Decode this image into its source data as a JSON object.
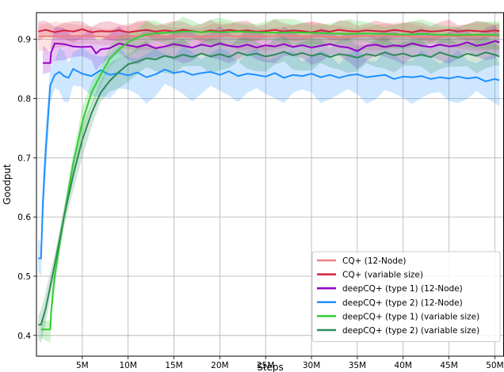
{
  "chart_data": {
    "type": "line",
    "title": "",
    "xlabel": "Steps",
    "ylabel": "Goodput",
    "xlim": [
      0,
      51
    ],
    "ylim": [
      0.365,
      0.945
    ],
    "x_unit": "M steps",
    "xticks": [
      {
        "value": 5,
        "label": "5M"
      },
      {
        "value": 10,
        "label": "10M"
      },
      {
        "value": 15,
        "label": "15M"
      },
      {
        "value": 20,
        "label": "20M"
      },
      {
        "value": 25,
        "label": "25M"
      },
      {
        "value": 30,
        "label": "30M"
      },
      {
        "value": 35,
        "label": "35M"
      },
      {
        "value": 40,
        "label": "40M"
      },
      {
        "value": 45,
        "label": "45M"
      },
      {
        "value": 50,
        "label": "50M"
      }
    ],
    "yticks": [
      {
        "value": 0.4,
        "label": "0.4"
      },
      {
        "value": 0.5,
        "label": "0.5"
      },
      {
        "value": 0.6,
        "label": "0.6"
      },
      {
        "value": 0.7,
        "label": "0.7"
      },
      {
        "value": 0.8,
        "label": "0.8"
      },
      {
        "value": 0.9,
        "label": "0.9"
      }
    ],
    "grid": true,
    "legend_position": "lower-right",
    "series": [
      {
        "name": "CQ+ (12-Node)",
        "color": "#f08080",
        "band": 0.025,
        "x": [
          0.2,
          2,
          5,
          8,
          10,
          12,
          15,
          18,
          20,
          22,
          25,
          28,
          30,
          33,
          35,
          38,
          40,
          43,
          45,
          48,
          50.5
        ],
        "y": [
          0.905,
          0.905,
          0.906,
          0.904,
          0.905,
          0.906,
          0.905,
          0.904,
          0.906,
          0.905,
          0.905,
          0.906,
          0.905,
          0.904,
          0.905,
          0.906,
          0.905,
          0.904,
          0.905,
          0.905,
          0.905
        ]
      },
      {
        "name": "CQ+ (variable size)",
        "color": "#d62040",
        "band": 0.018,
        "x": [
          0.2,
          1,
          2,
          3,
          4,
          5,
          6,
          7,
          8,
          9,
          10,
          11,
          12,
          13,
          14,
          15,
          16,
          17,
          18,
          19,
          20,
          21,
          22,
          23,
          24,
          25,
          26,
          27,
          28,
          29,
          30,
          31,
          32,
          33,
          34,
          35,
          36,
          37,
          38,
          39,
          40,
          41,
          42,
          43,
          44,
          45,
          46,
          47,
          48,
          49,
          50,
          50.5
        ],
        "y": [
          0.913,
          0.916,
          0.912,
          0.915,
          0.913,
          0.917,
          0.912,
          0.914,
          0.913,
          0.915,
          0.912,
          0.914,
          0.916,
          0.913,
          0.915,
          0.913,
          0.916,
          0.914,
          0.912,
          0.915,
          0.913,
          0.916,
          0.914,
          0.915,
          0.913,
          0.914,
          0.916,
          0.913,
          0.915,
          0.914,
          0.912,
          0.915,
          0.913,
          0.916,
          0.914,
          0.913,
          0.915,
          0.914,
          0.913,
          0.916,
          0.914,
          0.912,
          0.915,
          0.913,
          0.914,
          0.916,
          0.913,
          0.915,
          0.914,
          0.913,
          0.915,
          0.914
        ]
      },
      {
        "name": "deepCQ+ (type 1) (12-Node)",
        "color": "#9400c8",
        "band": 0.03,
        "x": [
          0.7,
          1.5,
          1.6,
          2,
          3,
          4,
          5,
          6,
          6.5,
          7,
          8,
          9,
          10,
          11,
          12,
          13,
          14,
          15,
          16,
          17,
          18,
          19,
          20,
          21,
          22,
          23,
          24,
          25,
          26,
          27,
          28,
          29,
          30,
          31,
          32,
          33,
          34,
          35,
          36,
          37,
          38,
          39,
          40,
          41,
          42,
          43,
          44,
          45,
          46,
          47,
          48,
          49,
          50,
          50.5
        ],
        "y": [
          0.86,
          0.86,
          0.878,
          0.893,
          0.892,
          0.888,
          0.887,
          0.888,
          0.876,
          0.883,
          0.885,
          0.893,
          0.89,
          0.887,
          0.891,
          0.885,
          0.888,
          0.892,
          0.889,
          0.886,
          0.891,
          0.888,
          0.893,
          0.889,
          0.887,
          0.891,
          0.886,
          0.89,
          0.888,
          0.892,
          0.887,
          0.89,
          0.886,
          0.889,
          0.892,
          0.888,
          0.886,
          0.88,
          0.889,
          0.891,
          0.887,
          0.89,
          0.888,
          0.893,
          0.889,
          0.887,
          0.891,
          0.888,
          0.89,
          0.895,
          0.889,
          0.892,
          0.897,
          0.895
        ]
      },
      {
        "name": "deepCQ+ (type 2) (12-Node)",
        "color": "#1e90ff",
        "band": 0.045,
        "x": [
          0.2,
          0.5,
          0.7,
          1,
          1.5,
          2,
          2.5,
          3,
          3.5,
          4,
          5,
          6,
          7,
          8,
          9,
          10,
          11,
          12,
          13,
          14,
          15,
          16,
          17,
          18,
          19,
          20,
          21,
          22,
          23,
          24,
          25,
          26,
          27,
          28,
          29,
          30,
          31,
          32,
          33,
          34,
          35,
          36,
          37,
          38,
          39,
          40,
          41,
          42,
          43,
          44,
          45,
          46,
          47,
          48,
          49,
          50,
          50.5
        ],
        "y": [
          0.53,
          0.53,
          0.625,
          0.71,
          0.822,
          0.84,
          0.845,
          0.838,
          0.835,
          0.85,
          0.842,
          0.838,
          0.848,
          0.84,
          0.843,
          0.839,
          0.844,
          0.836,
          0.841,
          0.849,
          0.843,
          0.846,
          0.84,
          0.843,
          0.845,
          0.84,
          0.846,
          0.838,
          0.842,
          0.84,
          0.837,
          0.843,
          0.835,
          0.84,
          0.838,
          0.842,
          0.836,
          0.84,
          0.835,
          0.839,
          0.841,
          0.836,
          0.838,
          0.84,
          0.833,
          0.837,
          0.836,
          0.838,
          0.833,
          0.836,
          0.834,
          0.837,
          0.834,
          0.836,
          0.829,
          0.833,
          0.831
        ]
      },
      {
        "name": "deepCQ+ (type 1) (variable size)",
        "color": "#32cd32",
        "band": 0.025,
        "x": [
          0.5,
          1.5,
          1.6,
          2,
          3,
          4,
          5,
          6,
          7,
          8,
          9,
          10,
          11,
          12,
          13,
          14,
          15,
          16,
          17,
          18,
          19,
          20,
          22,
          24,
          26,
          28,
          30,
          32,
          34,
          36,
          38,
          40,
          42,
          44,
          46,
          48,
          50.5
        ],
        "y": [
          0.41,
          0.41,
          0.44,
          0.5,
          0.6,
          0.69,
          0.76,
          0.81,
          0.84,
          0.867,
          0.883,
          0.895,
          0.903,
          0.908,
          0.91,
          0.911,
          0.912,
          0.913,
          0.913,
          0.912,
          0.913,
          0.912,
          0.913,
          0.912,
          0.911,
          0.912,
          0.911,
          0.91,
          0.909,
          0.91,
          0.909,
          0.908,
          0.909,
          0.908,
          0.907,
          0.908,
          0.907
        ]
      },
      {
        "name": "deepCQ+ (type 2) (variable size)",
        "color": "#2e8b57",
        "band": 0.03,
        "x": [
          0.2,
          0.5,
          1,
          2,
          3,
          4,
          5,
          6,
          7,
          8,
          9,
          10,
          11,
          12,
          13,
          14,
          15,
          16,
          17,
          18,
          19,
          20,
          21,
          22,
          23,
          24,
          25,
          26,
          27,
          28,
          29,
          30,
          31,
          32,
          33,
          34,
          35,
          36,
          37,
          38,
          39,
          40,
          41,
          42,
          43,
          44,
          45,
          46,
          47,
          48,
          49,
          50,
          50.5
        ],
        "y": [
          0.418,
          0.418,
          0.445,
          0.52,
          0.6,
          0.67,
          0.73,
          0.775,
          0.81,
          0.83,
          0.845,
          0.858,
          0.862,
          0.868,
          0.866,
          0.872,
          0.869,
          0.874,
          0.87,
          0.876,
          0.871,
          0.875,
          0.87,
          0.878,
          0.873,
          0.876,
          0.871,
          0.874,
          0.879,
          0.873,
          0.877,
          0.872,
          0.876,
          0.87,
          0.875,
          0.873,
          0.869,
          0.875,
          0.872,
          0.878,
          0.873,
          0.876,
          0.871,
          0.874,
          0.87,
          0.878,
          0.873,
          0.869,
          0.876,
          0.872,
          0.878,
          0.874,
          0.871
        ]
      }
    ]
  }
}
